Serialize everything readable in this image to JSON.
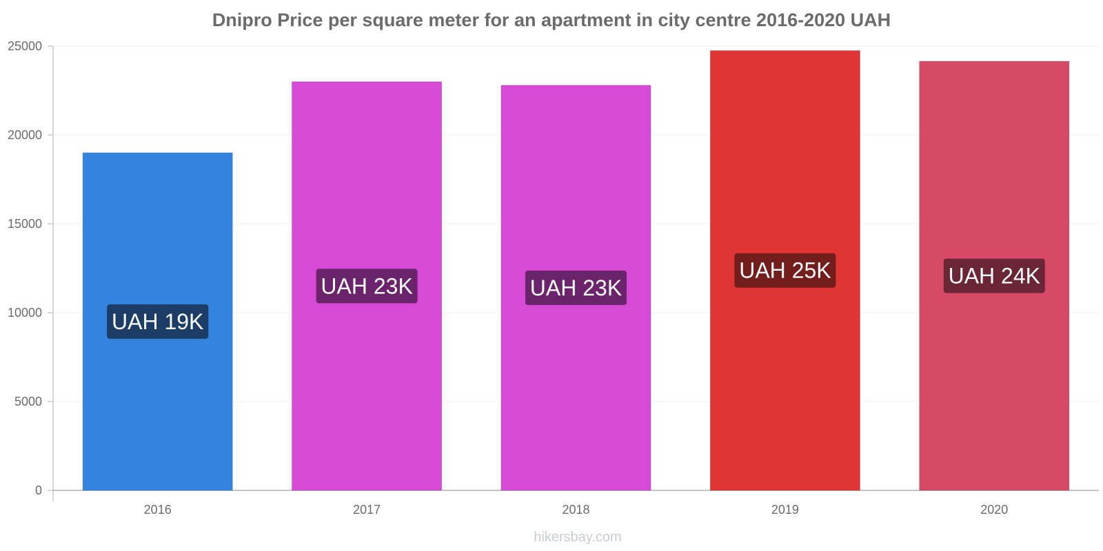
{
  "chart_data": {
    "type": "bar",
    "title": "Dnipro Price per square meter for an apartment in city centre 2016-2020 UAH",
    "categories": [
      "2016",
      "2017",
      "2018",
      "2019",
      "2020"
    ],
    "values": [
      19000,
      23000,
      22800,
      24750,
      24150
    ],
    "value_labels": [
      "UAH 19K",
      "UAH 23K",
      "UAH 23K",
      "UAH 25K",
      "UAH 24K"
    ],
    "bar_colors": [
      "#3483df",
      "#d64ad6",
      "#d64ad6",
      "#e03535",
      "#d74a67"
    ],
    "label_colors": [
      "#1b3d66",
      "#6b236b",
      "#6b236b",
      "#741d1d",
      "#6b2636"
    ],
    "y_ticks": [
      "0",
      "5000",
      "10000",
      "15000",
      "20000",
      "25000"
    ],
    "ylim": [
      0,
      25000
    ],
    "xlabel": "",
    "ylabel": "",
    "grid": true,
    "legend": "none"
  },
  "watermark": "hikersbay.com"
}
